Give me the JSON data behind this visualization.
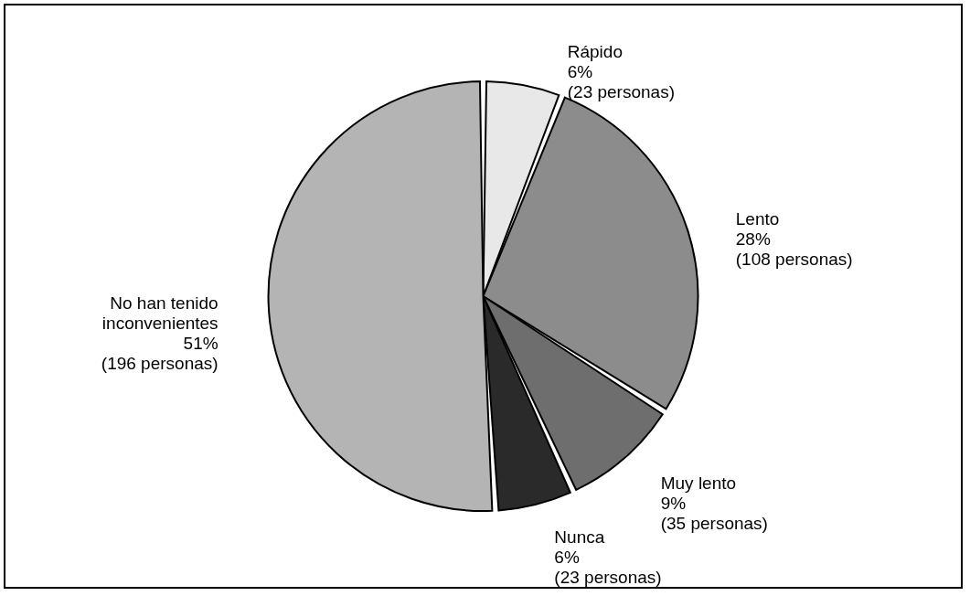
{
  "chart_data": {
    "type": "pie",
    "categories": [
      "Rápido",
      "Lento",
      "Muy lento",
      "Nunca",
      "No han tenido inconvenientes"
    ],
    "values": [
      23,
      108,
      35,
      23,
      196
    ],
    "value_labels": [
      "6%\n(23 personas)",
      "28%\n(108 personas)",
      "9%\n(35 personas)",
      "6%\n(23 personas)",
      "51%\n(196 personas)"
    ],
    "colors": [
      "#e8e8e8",
      "#8c8c8c",
      "#6e6e6e",
      "#2a2a2a",
      "#b4b4b4"
    ]
  }
}
